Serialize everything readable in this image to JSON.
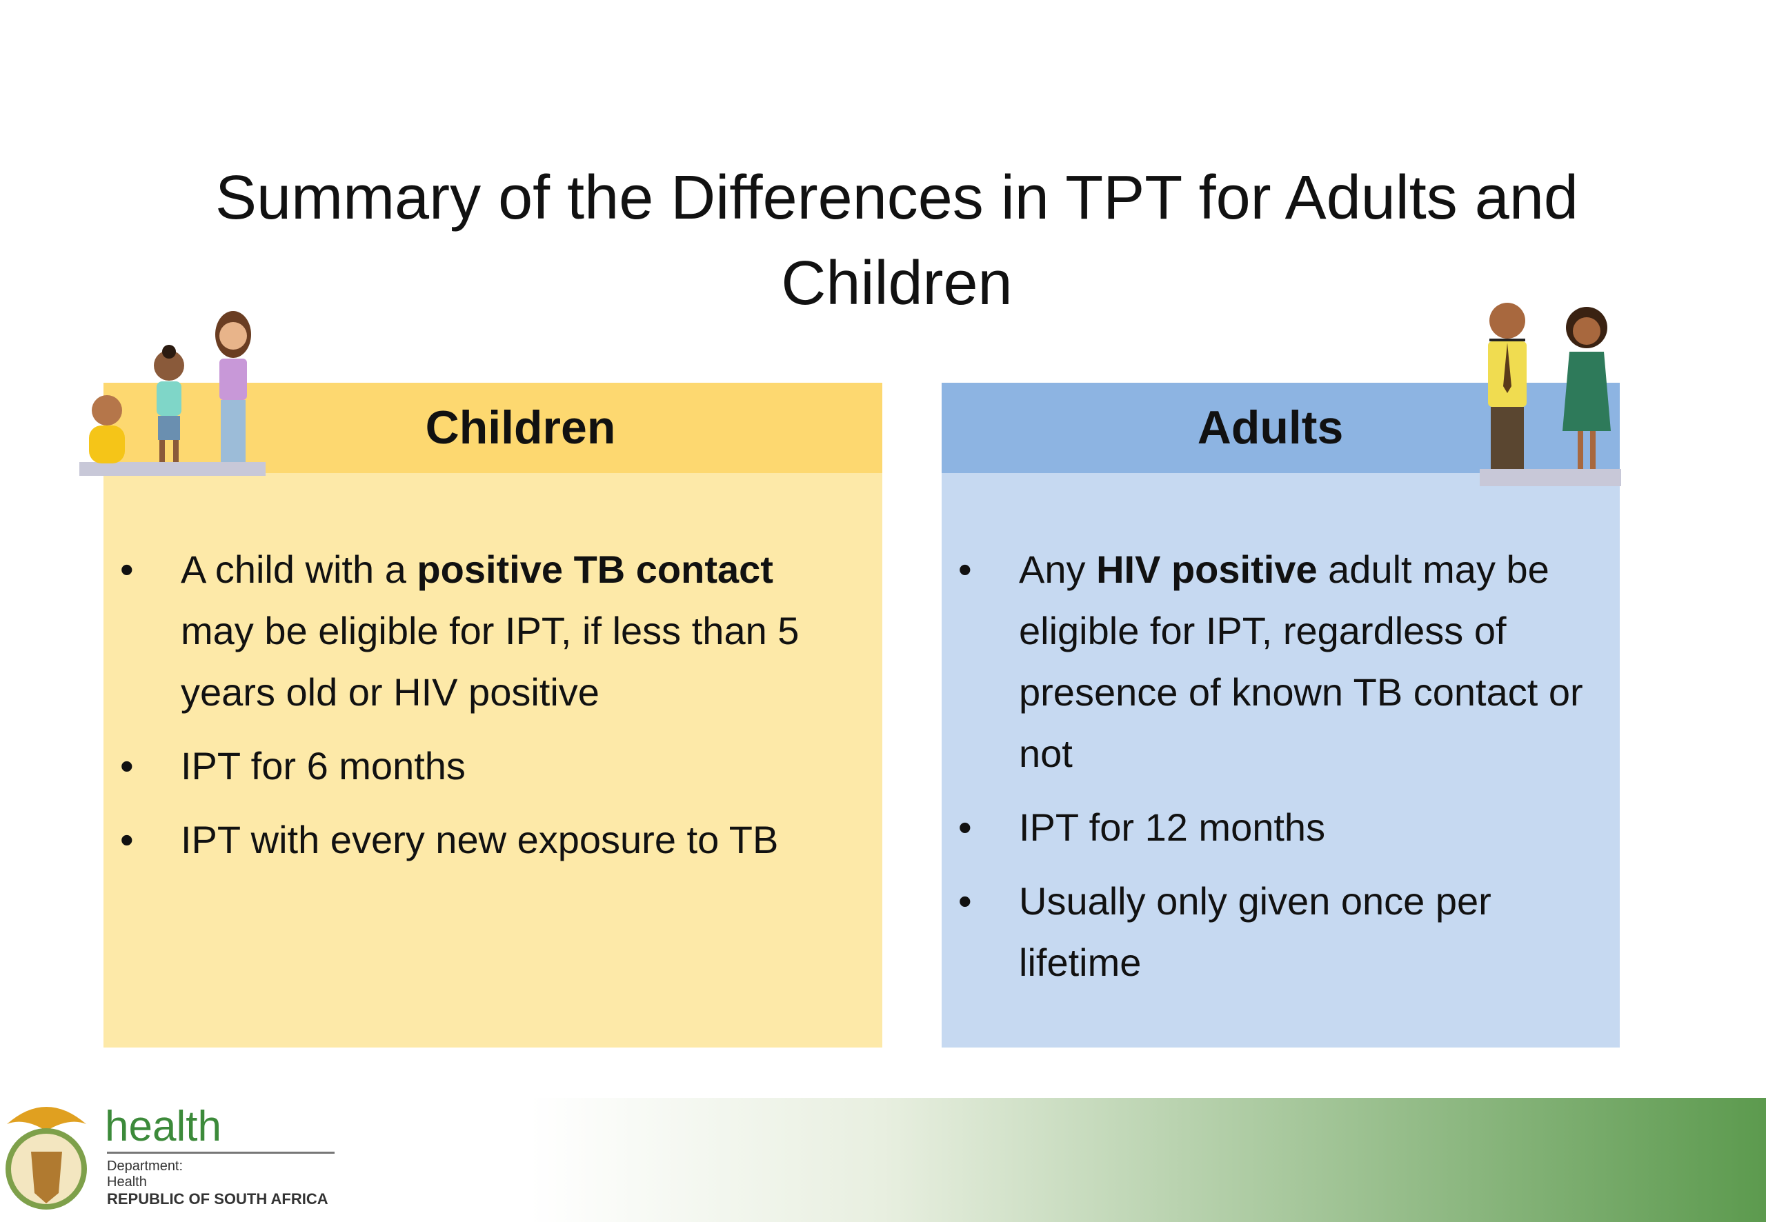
{
  "title": "Summary of the Differences in TPT for Adults and Children",
  "panels": [
    {
      "heading": "Children",
      "bullets": [
        [
          {
            "text": "A child with a "
          },
          {
            "text": "positive TB contact",
            "bold": true
          },
          {
            "text": " may be eligible for IPT, if less than 5 years old or HIV positive"
          }
        ],
        [
          {
            "text": "IPT for 6 months"
          }
        ],
        [
          {
            "text": "IPT with every new exposure to TB"
          }
        ]
      ]
    },
    {
      "heading": "Adults",
      "bullets": [
        [
          {
            "text": "Any "
          },
          {
            "text": "HIV positive",
            "bold": true
          },
          {
            "text": " adult may be eligible for IPT, regardless of presence of known TB contact or not"
          }
        ],
        [
          {
            "text": "IPT for 12 months"
          }
        ],
        [
          {
            "text": "Usually only given once per lifetime"
          }
        ]
      ]
    }
  ],
  "footer": {
    "brand": "health",
    "line1": "Department:",
    "line2": "Health",
    "line3": "REPUBLIC OF SOUTH AFRICA"
  }
}
